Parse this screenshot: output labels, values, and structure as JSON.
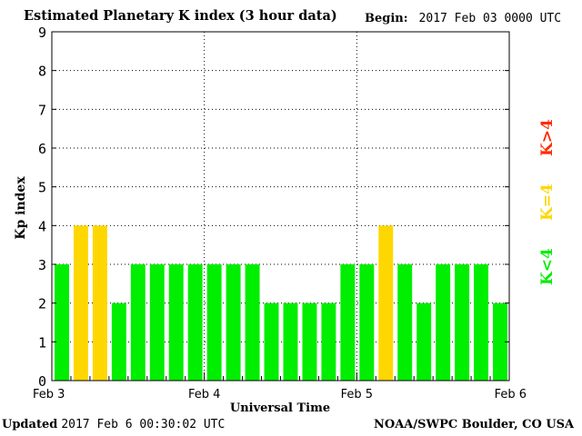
{
  "header": {
    "title": "Estimated Planetary K index (3 hour data)",
    "begin_label": "Begin:",
    "begin_value": "2017 Feb 03 0000 UTC"
  },
  "footer": {
    "updated_label": "Updated",
    "updated_value": "2017 Feb  6 00:30:02 UTC",
    "source": "NOAA/SWPC Boulder, CO USA"
  },
  "legend": [
    {
      "label": "K>4",
      "color": "#ff2a00"
    },
    {
      "label": "K=4",
      "color": "#ffd700"
    },
    {
      "label": "K<4",
      "color": "#00ee00"
    }
  ],
  "chart_data": {
    "type": "bar",
    "title": "Estimated Planetary K index (3 hour data)",
    "xlabel": "Universal Time",
    "ylabel": "Kp index",
    "ylim": [
      0,
      9
    ],
    "yticks": [
      0,
      1,
      2,
      3,
      4,
      5,
      6,
      7,
      8,
      9
    ],
    "x_ticks": [
      "Feb 3",
      "Feb 4",
      "Feb 5",
      "Feb 6"
    ],
    "grid": true,
    "values": [
      3,
      4,
      4,
      2,
      3,
      3,
      3,
      3,
      3,
      3,
      3,
      2,
      2,
      2,
      2,
      3,
      3,
      4,
      3,
      2,
      3,
      3,
      3,
      2
    ],
    "colors": {
      "below4": "#00ee00",
      "equal4": "#ffd700",
      "above4": "#ff2a00"
    }
  }
}
